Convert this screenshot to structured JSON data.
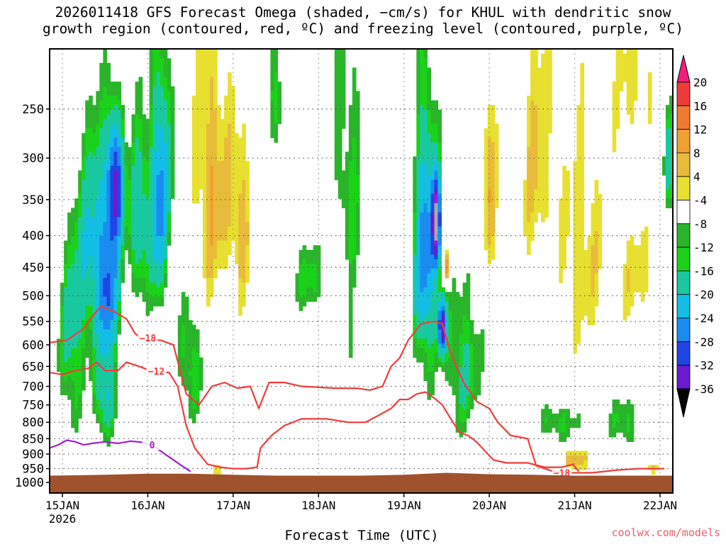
{
  "header": {
    "title_line1": "2026011418 GFS Forecast Omega (shaded, −cm/s) for KHUL with dendritic snow",
    "title_line2": "growth region (contoured, red, ºC) and freezing level (contoured, purple, ºC)"
  },
  "footer": {
    "credit": "coolwx.com/models",
    "credit_color": "#e8606b"
  },
  "chart_data": {
    "type": "heatmap",
    "title": "2026011418 GFS Forecast Omega (shaded, −cm/s) for KHUL with dendritic snow growth region (contoured, red, ºC) and freezing level (contoured, purple, ºC)",
    "xlabel": "Forecast Time (UTC)",
    "ylabel": "",
    "x_unit": "days since 2026-01-15 00Z",
    "xlim": [
      -0.15,
      7.15
    ],
    "x_ticks": [
      {
        "x": 0,
        "label": "15JAN",
        "sublabel": "2026"
      },
      {
        "x": 1,
        "label": "16JAN"
      },
      {
        "x": 2,
        "label": "17JAN"
      },
      {
        "x": 3,
        "label": "18JAN"
      },
      {
        "x": 4,
        "label": "19JAN"
      },
      {
        "x": 5,
        "label": "20JAN"
      },
      {
        "x": 6,
        "label": "21JAN"
      },
      {
        "x": 7,
        "label": "22JAN"
      }
    ],
    "y_unit": "hPa",
    "y_ticks": [
      250,
      300,
      350,
      400,
      450,
      500,
      550,
      600,
      650,
      700,
      750,
      800,
      850,
      900,
      950,
      1000
    ],
    "colorbar": {
      "label_values": [
        20,
        16,
        12,
        8,
        4,
        -4,
        -8,
        -12,
        -16,
        -20,
        -24,
        -28,
        -32,
        -36
      ],
      "colors": [
        "#f0207e",
        "#f03a3a",
        "#f07a30",
        "#f0a030",
        "#e8bc3a",
        "#e8e030",
        "#ffffff",
        "#2ab42a",
        "#1ad21a",
        "#1ac8a0",
        "#12bee6",
        "#1a8cf0",
        "#1f45e6",
        "#6a1ad2",
        "#a01adc",
        "#a8a8a8",
        "#000000"
      ]
    },
    "omega_blobs": [
      {
        "x": 0.38,
        "p": 420,
        "dx": 0.22,
        "dp": 170,
        "v": -13
      },
      {
        "x": 0.62,
        "p": 330,
        "dx": 0.1,
        "dp": 80,
        "v": -22
      },
      {
        "x": 0.55,
        "p": 500,
        "dx": 0.12,
        "dp": 120,
        "v": -14
      },
      {
        "x": 1.15,
        "p": 350,
        "dx": 0.12,
        "dp": 160,
        "v": -18
      },
      {
        "x": 0.9,
        "p": 380,
        "dx": 0.12,
        "dp": 120,
        "v": -12
      },
      {
        "x": 0.1,
        "p": 600,
        "dx": 0.15,
        "dp": 200,
        "v": -9
      },
      {
        "x": 0.5,
        "p": 720,
        "dx": 0.12,
        "dp": 120,
        "v": -13
      },
      {
        "x": 1.5,
        "p": 640,
        "dx": 0.15,
        "dp": 150,
        "v": -8
      },
      {
        "x": 2.5,
        "p": 240,
        "dx": 0.08,
        "dp": 60,
        "v": -8
      },
      {
        "x": 2.9,
        "p": 470,
        "dx": 0.2,
        "dp": 60,
        "v": -7
      },
      {
        "x": 3.35,
        "p": 400,
        "dx": 0.2,
        "dp": 300,
        "v": -7
      },
      {
        "x": 4.25,
        "p": 430,
        "dx": 0.14,
        "dp": 210,
        "v": -18
      },
      {
        "x": 4.38,
        "p": 380,
        "dx": 0.05,
        "dp": 60,
        "v": -28
      },
      {
        "x": 4.45,
        "p": 560,
        "dx": 0.05,
        "dp": 60,
        "v": -26
      },
      {
        "x": 4.7,
        "p": 650,
        "dx": 0.2,
        "dp": 180,
        "v": -9
      },
      {
        "x": 5.8,
        "p": 800,
        "dx": 0.25,
        "dp": 60,
        "v": -7
      },
      {
        "x": 6.6,
        "p": 800,
        "dx": 0.2,
        "dp": 80,
        "v": -7
      },
      {
        "x": 7.1,
        "p": 300,
        "dx": 0.06,
        "dp": 60,
        "v": -11
      },
      {
        "x": 1.75,
        "p": 330,
        "dx": 0.22,
        "dp": 180,
        "v": 8
      },
      {
        "x": 2.1,
        "p": 380,
        "dx": 0.14,
        "dp": 130,
        "v": 7
      },
      {
        "x": 1.25,
        "p": 470,
        "dx": 0.06,
        "dp": 120,
        "v": 6
      },
      {
        "x": 3.25,
        "p": 470,
        "dx": 0.15,
        "dp": 80,
        "v": 6
      },
      {
        "x": 4.5,
        "p": 450,
        "dx": 0.04,
        "dp": 30,
        "v": 11
      },
      {
        "x": 5.0,
        "p": 330,
        "dx": 0.08,
        "dp": 150,
        "v": 8
      },
      {
        "x": 5.55,
        "p": 300,
        "dx": 0.2,
        "dp": 160,
        "v": 6
      },
      {
        "x": 6.1,
        "p": 420,
        "dx": 0.3,
        "dp": 200,
        "v": 5.5
      },
      {
        "x": 6.75,
        "p": 470,
        "dx": 0.25,
        "dp": 100,
        "v": 5
      },
      {
        "x": 6.7,
        "p": 220,
        "dx": 0.25,
        "dp": 80,
        "v": 5
      },
      {
        "x": 6.0,
        "p": 920,
        "dx": 0.2,
        "dp": 40,
        "v": 7
      },
      {
        "x": 1.8,
        "p": 950,
        "dx": 0.15,
        "dp": 30,
        "v": 5
      },
      {
        "x": 6.95,
        "p": 950,
        "dx": 0.1,
        "dp": 20,
        "v": 5
      }
    ],
    "contours": [
      {
        "name": "dendritic-top",
        "label": "−18",
        "color": "#f03c3c",
        "label_at": [
          1.0,
          585
        ],
        "points": [
          [
            -0.15,
            595
          ],
          [
            0.05,
            590
          ],
          [
            0.25,
            565
          ],
          [
            0.35,
            540
          ],
          [
            0.45,
            520
          ],
          [
            0.6,
            530
          ],
          [
            0.75,
            545
          ],
          [
            0.85,
            575
          ],
          [
            0.95,
            590
          ],
          [
            1.15,
            590
          ],
          [
            1.3,
            600
          ],
          [
            1.45,
            720
          ],
          [
            1.6,
            750
          ],
          [
            1.75,
            700
          ],
          [
            1.9,
            690
          ],
          [
            2.05,
            705
          ],
          [
            2.2,
            700
          ],
          [
            2.3,
            760
          ],
          [
            2.42,
            690
          ],
          [
            2.6,
            690
          ],
          [
            2.8,
            700
          ],
          [
            3.2,
            705
          ],
          [
            3.45,
            705
          ],
          [
            3.6,
            710
          ],
          [
            3.75,
            700
          ],
          [
            3.85,
            650
          ],
          [
            3.95,
            630
          ],
          [
            4.05,
            590
          ],
          [
            4.2,
            555
          ],
          [
            4.35,
            550
          ],
          [
            4.45,
            555
          ],
          [
            4.55,
            620
          ],
          [
            4.7,
            690
          ],
          [
            4.85,
            740
          ],
          [
            5.0,
            760
          ],
          [
            5.1,
            800
          ],
          [
            5.25,
            840
          ],
          [
            5.35,
            845
          ]
        ]
      },
      {
        "name": "dendritic-top-b",
        "label": "−18",
        "color": "#f03c3c",
        "label_at": [
          5.85,
          965
        ],
        "points": [
          [
            5.35,
            845
          ],
          [
            5.45,
            850
          ],
          [
            5.55,
            940
          ],
          [
            5.75,
            960
          ],
          [
            5.9,
            965
          ],
          [
            6.2,
            965
          ],
          [
            6.5,
            955
          ],
          [
            6.75,
            950
          ],
          [
            7.05,
            950
          ]
        ]
      },
      {
        "name": "dendritic-bottom",
        "label": "−12",
        "color": "#f03c3c",
        "label_at": [
          1.1,
          662
        ],
        "points": [
          [
            -0.15,
            665
          ],
          [
            0.0,
            670
          ],
          [
            0.15,
            660
          ],
          [
            0.3,
            655
          ],
          [
            0.4,
            640
          ],
          [
            0.5,
            660
          ],
          [
            0.65,
            660
          ],
          [
            0.75,
            640
          ],
          [
            0.9,
            650
          ],
          [
            1.05,
            662
          ],
          [
            1.25,
            665
          ],
          [
            1.35,
            700
          ],
          [
            1.45,
            810
          ],
          [
            1.55,
            880
          ],
          [
            1.7,
            935
          ],
          [
            1.85,
            945
          ],
          [
            2.0,
            950
          ],
          [
            2.15,
            950
          ],
          [
            2.28,
            945
          ],
          [
            2.32,
            880
          ],
          [
            2.45,
            840
          ],
          [
            2.6,
            810
          ],
          [
            2.8,
            790
          ],
          [
            3.1,
            790
          ],
          [
            3.35,
            800
          ],
          [
            3.55,
            800
          ],
          [
            3.7,
            780
          ],
          [
            3.85,
            760
          ],
          [
            3.95,
            735
          ],
          [
            4.05,
            735
          ],
          [
            4.15,
            720
          ],
          [
            4.25,
            715
          ],
          [
            4.35,
            730
          ],
          [
            4.45,
            750
          ],
          [
            4.55,
            790
          ],
          [
            4.65,
            830
          ],
          [
            4.75,
            840
          ],
          [
            4.85,
            860
          ],
          [
            4.95,
            890
          ],
          [
            5.05,
            920
          ],
          [
            5.2,
            930
          ],
          [
            5.45,
            930
          ],
          [
            5.65,
            945
          ],
          [
            5.85,
            945
          ],
          [
            5.98,
            935
          ],
          [
            6.05,
            960
          ]
        ]
      },
      {
        "name": "freezing-level",
        "label": "0",
        "color": "#a020c8",
        "label_at": [
          1.05,
          870
        ],
        "points": [
          [
            -0.15,
            880
          ],
          [
            -0.05,
            870
          ],
          [
            0.05,
            855
          ],
          [
            0.15,
            860
          ],
          [
            0.25,
            870
          ],
          [
            0.35,
            865
          ],
          [
            0.5,
            860
          ],
          [
            0.65,
            865
          ],
          [
            0.8,
            858
          ],
          [
            0.95,
            862
          ],
          [
            1.1,
            880
          ],
          [
            1.25,
            910
          ],
          [
            1.4,
            940
          ],
          [
            1.5,
            960
          ]
        ]
      }
    ],
    "terrain": {
      "label": "surface",
      "color": "#a0522d",
      "surface_p": [
        [
          -0.15,
          975
        ],
        [
          0.5,
          972
        ],
        [
          1.0,
          968
        ],
        [
          1.5,
          968
        ],
        [
          2.0,
          972
        ],
        [
          2.5,
          975
        ],
        [
          3.0,
          975
        ],
        [
          3.5,
          975
        ],
        [
          4.0,
          972
        ],
        [
          4.5,
          965
        ],
        [
          5.0,
          970
        ],
        [
          5.5,
          972
        ],
        [
          6.0,
          975
        ],
        [
          6.5,
          975
        ],
        [
          7.15,
          975
        ]
      ]
    }
  }
}
